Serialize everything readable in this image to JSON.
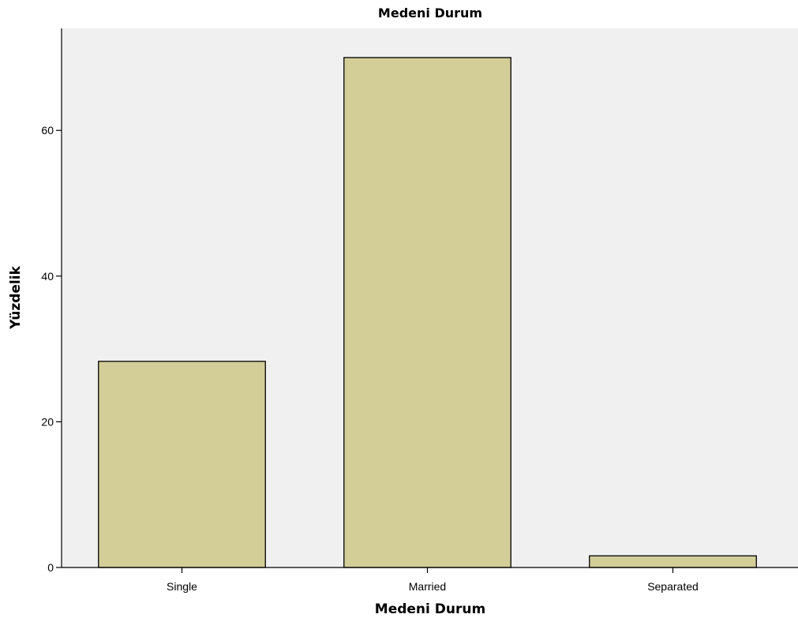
{
  "chart_data": {
    "type": "bar",
    "title": "Medeni Durum",
    "xlabel": "Medeni Durum",
    "ylabel": "Yüzdelik",
    "categories": [
      "Single",
      "Married",
      "Separated"
    ],
    "values": [
      28.3,
      70.0,
      1.6
    ],
    "ylim": [
      0,
      74
    ],
    "yticks": [
      0,
      20,
      40,
      60
    ],
    "grid": false,
    "bar_color": "#d3cd98",
    "plot_background": "#f0f0f0"
  }
}
